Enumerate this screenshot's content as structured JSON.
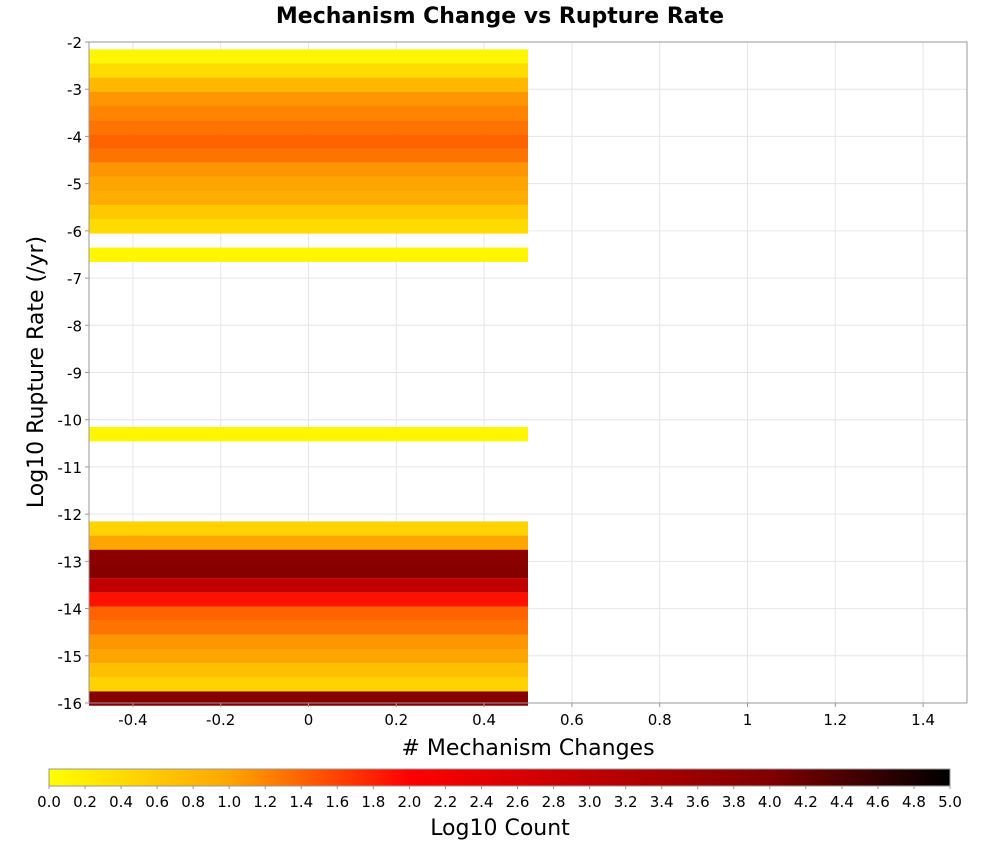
{
  "chart_data": {
    "type": "heatmap",
    "title": "Mechanism Change vs Rupture Rate",
    "xlabel": "# Mechanism Changes",
    "ylabel": "Log10 Rupture Rate (/yr)",
    "xlim": [
      -0.5,
      1.5
    ],
    "ylim": [
      -16,
      -2
    ],
    "x_ticks": [
      -0.4,
      -0.2,
      0,
      0.2,
      0.4,
      0.6,
      0.8,
      1,
      1.2,
      1.4
    ],
    "x_tick_labels": [
      "-0.4",
      "-0.2",
      "0",
      "0.2",
      "0.4",
      "0.6",
      "0.8",
      "1",
      "1.2",
      "1.4"
    ],
    "y_ticks": [
      -2,
      -3,
      -4,
      -5,
      -6,
      -7,
      -8,
      -9,
      -10,
      -11,
      -12,
      -13,
      -14,
      -15,
      -16
    ],
    "y_tick_labels": [
      "-2",
      "-3",
      "-4",
      "-5",
      "-6",
      "-7",
      "-8",
      "-9",
      "-10",
      "-11",
      "-12",
      "-13",
      "-14",
      "-15",
      "-16"
    ],
    "grid": true,
    "cell_x_range": [
      -0.5,
      0.5
    ],
    "cell_height": 0.29,
    "cells": [
      {
        "x": 0,
        "y": -2.3,
        "value": 0.1
      },
      {
        "x": 0,
        "y": -2.6,
        "value": 0.4
      },
      {
        "x": 0,
        "y": -2.9,
        "value": 0.8
      },
      {
        "x": 0,
        "y": -3.2,
        "value": 1.1
      },
      {
        "x": 0,
        "y": -3.5,
        "value": 1.2
      },
      {
        "x": 0,
        "y": -3.8,
        "value": 1.3
      },
      {
        "x": 0,
        "y": -4.1,
        "value": 1.4
      },
      {
        "x": 0,
        "y": -4.4,
        "value": 1.3
      },
      {
        "x": 0,
        "y": -4.7,
        "value": 1.1
      },
      {
        "x": 0,
        "y": -5.0,
        "value": 1.0
      },
      {
        "x": 0,
        "y": -5.3,
        "value": 0.9
      },
      {
        "x": 0,
        "y": -5.6,
        "value": 0.6
      },
      {
        "x": 0,
        "y": -5.9,
        "value": 0.4
      },
      {
        "x": 0,
        "y": -6.5,
        "value": 0.1
      },
      {
        "x": 0,
        "y": -10.3,
        "value": 0.1
      },
      {
        "x": 0,
        "y": -12.3,
        "value": 0.5
      },
      {
        "x": 0,
        "y": -12.6,
        "value": 1.0
      },
      {
        "x": 0,
        "y": -12.9,
        "value": 3.8
      },
      {
        "x": 0,
        "y": -13.2,
        "value": 3.9
      },
      {
        "x": 0,
        "y": -13.5,
        "value": 3.0
      },
      {
        "x": 0,
        "y": -13.8,
        "value": 1.9
      },
      {
        "x": 0,
        "y": -14.1,
        "value": 1.4
      },
      {
        "x": 0,
        "y": -14.4,
        "value": 1.3
      },
      {
        "x": 0,
        "y": -14.7,
        "value": 1.1
      },
      {
        "x": 0,
        "y": -15.0,
        "value": 1.0
      },
      {
        "x": 0,
        "y": -15.3,
        "value": 0.7
      },
      {
        "x": 0,
        "y": -15.6,
        "value": 0.5
      },
      {
        "x": 0,
        "y": -15.9,
        "value": 3.9
      }
    ],
    "colorbar": {
      "label": "Log10 Count",
      "range": [
        0,
        5
      ],
      "ticks": [
        0.0,
        0.2,
        0.4,
        0.6,
        0.8,
        1.0,
        1.2,
        1.4,
        1.6,
        1.8,
        2.0,
        2.2,
        2.4,
        2.6,
        2.8,
        3.0,
        3.2,
        3.4,
        3.6,
        3.8,
        4.0,
        4.2,
        4.4,
        4.6,
        4.8,
        5.0
      ],
      "tick_labels": [
        "0.0",
        "0.2",
        "0.4",
        "0.6",
        "0.8",
        "1.0",
        "1.2",
        "1.4",
        "1.6",
        "1.8",
        "2.0",
        "2.2",
        "2.4",
        "2.6",
        "2.8",
        "3.0",
        "3.2",
        "3.4",
        "3.6",
        "3.8",
        "4.0",
        "4.2",
        "4.4",
        "4.6",
        "4.8",
        "5.0"
      ],
      "colors": [
        "#ffff00",
        "#ffa500",
        "#ff0000",
        "#800000",
        "#000000"
      ],
      "color_stops": [
        0,
        1,
        2,
        4,
        5
      ]
    },
    "colors": {
      "background": "#ffffff",
      "plot_background": "#ffffff",
      "grid": "#e6e6e6",
      "axis": "#999999"
    }
  }
}
